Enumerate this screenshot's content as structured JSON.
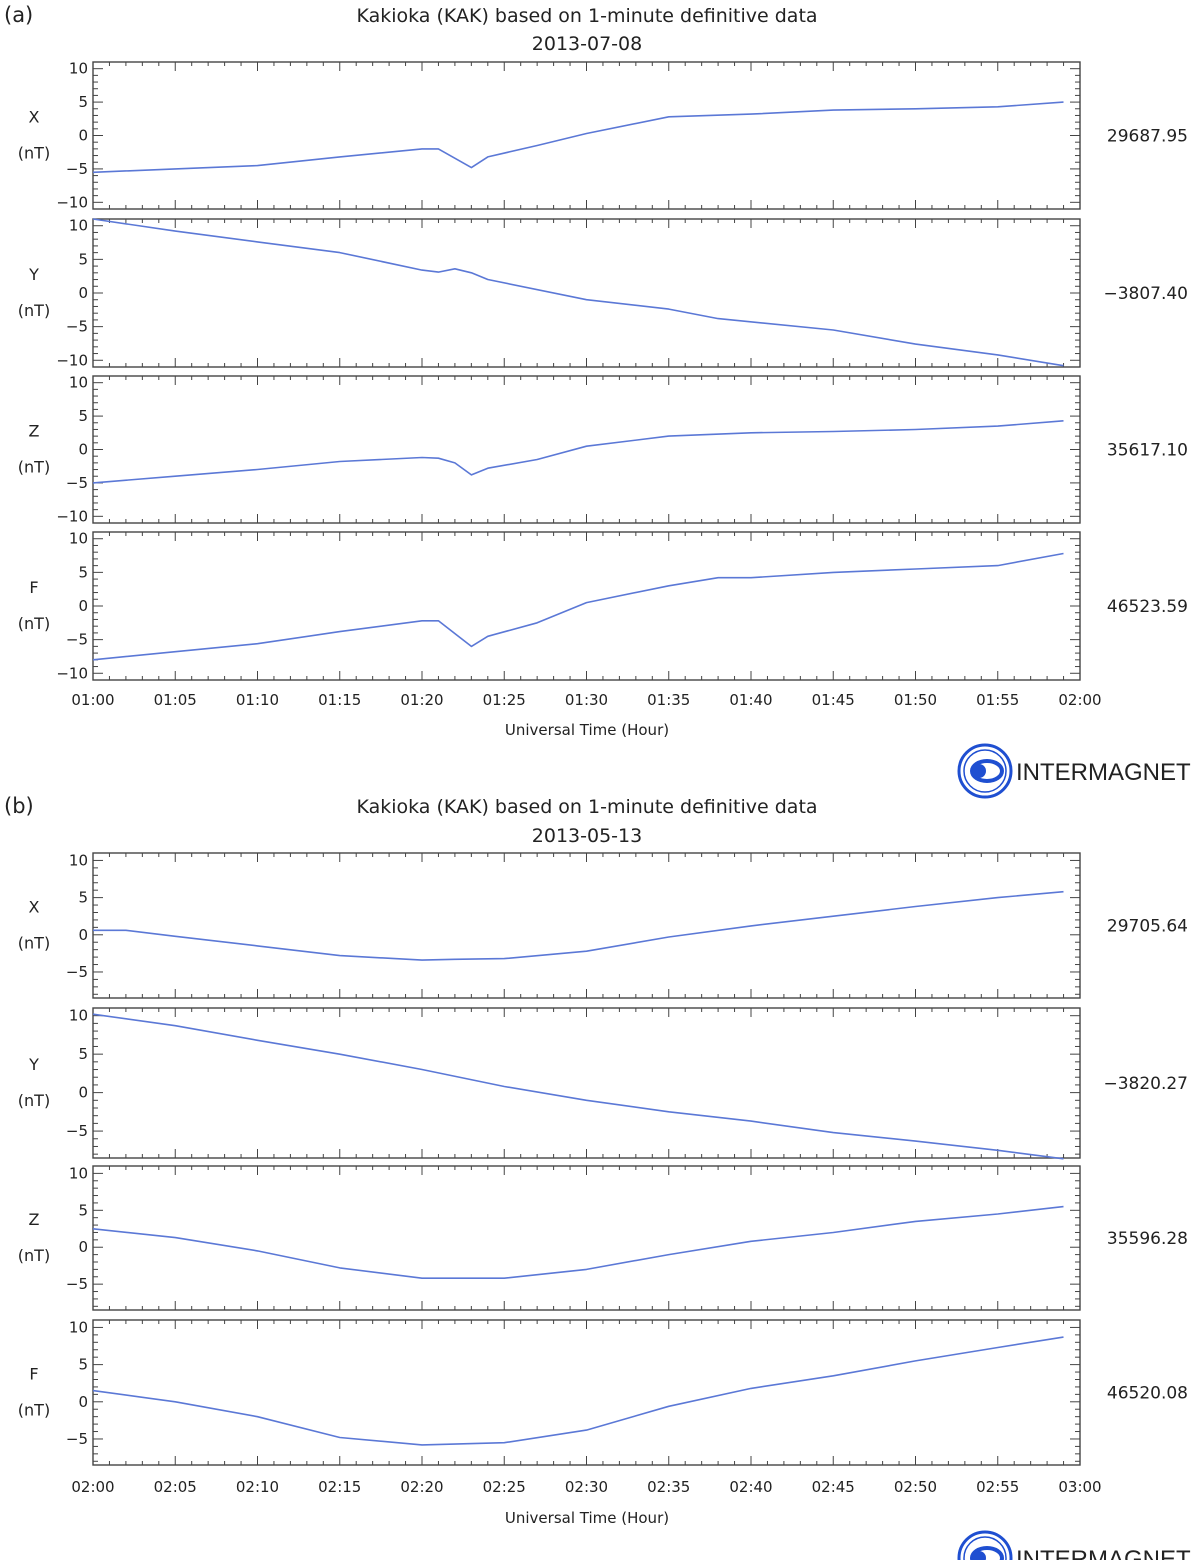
{
  "colors": {
    "series": "#5b78d6",
    "axis": "#444444",
    "logo": "#1f4fd1"
  },
  "logo": {
    "text": "INTERMAGNET",
    "icon": "intermagnet-logo-icon"
  },
  "figures": [
    {
      "panel_label": "(a)",
      "title": "Kakioka (KAK) based on 1-minute definitive data",
      "date": "2013-07-08",
      "xlabel": "Universal Time (Hour)",
      "xticks": [
        "01:00",
        "01:05",
        "01:10",
        "01:15",
        "01:20",
        "01:25",
        "01:30",
        "01:35",
        "01:40",
        "01:45",
        "01:50",
        "01:55",
        "02:00"
      ]
    },
    {
      "panel_label": "(b)",
      "title": "Kakioka (KAK) based on 1-minute definitive data",
      "date": "2013-05-13",
      "xlabel": "Universal Time (Hour)",
      "xticks": [
        "02:00",
        "02:05",
        "02:10",
        "02:15",
        "02:20",
        "02:25",
        "02:30",
        "02:35",
        "02:40",
        "02:45",
        "02:50",
        "02:55",
        "03:00"
      ]
    }
  ],
  "chart_data": [
    {
      "type": "line",
      "figure": "(a)",
      "title": "Kakioka (KAK) based on 1-minute definitive data",
      "subtitle": "2013-07-08",
      "xlabel": "Universal Time (Hour)",
      "x_unit": "minutes after 01:00 UT",
      "xlim": [
        0,
        60
      ],
      "series": [
        {
          "component": "X",
          "unit": "(nT)",
          "baseline": "29687.95",
          "ylim": [
            -11,
            11
          ],
          "yticks": [
            -10,
            -5,
            0,
            5,
            10
          ],
          "points": [
            [
              0,
              -5.5
            ],
            [
              5,
              -5
            ],
            [
              10,
              -4.5
            ],
            [
              15,
              -3.2
            ],
            [
              20,
              -2
            ],
            [
              21,
              -2
            ],
            [
              23,
              -4.8
            ],
            [
              24,
              -3.2
            ],
            [
              27,
              -1.5
            ],
            [
              30,
              0.3
            ],
            [
              35,
              2.8
            ],
            [
              40,
              3.2
            ],
            [
              45,
              3.8
            ],
            [
              50,
              4
            ],
            [
              55,
              4.3
            ],
            [
              59,
              5
            ]
          ]
        },
        {
          "component": "Y",
          "unit": "(nT)",
          "baseline": "−3807.40",
          "ylim": [
            -11,
            11
          ],
          "yticks": [
            -10,
            -5,
            0,
            5,
            10
          ],
          "points": [
            [
              0,
              11
            ],
            [
              5,
              9.2
            ],
            [
              10,
              7.6
            ],
            [
              15,
              6
            ],
            [
              20,
              3.4
            ],
            [
              21,
              3.1
            ],
            [
              22,
              3.6
            ],
            [
              23,
              3
            ],
            [
              24,
              2
            ],
            [
              30,
              -1
            ],
            [
              35,
              -2.4
            ],
            [
              38,
              -3.8
            ],
            [
              45,
              -5.5
            ],
            [
              50,
              -7.6
            ],
            [
              55,
              -9.2
            ],
            [
              59,
              -10.8
            ]
          ]
        },
        {
          "component": "Z",
          "unit": "(nT)",
          "baseline": "35617.10",
          "ylim": [
            -11,
            11
          ],
          "yticks": [
            -10,
            -5,
            0,
            5,
            10
          ],
          "points": [
            [
              0,
              -5
            ],
            [
              5,
              -4
            ],
            [
              10,
              -3
            ],
            [
              15,
              -1.8
            ],
            [
              20,
              -1.2
            ],
            [
              21,
              -1.3
            ],
            [
              22,
              -2
            ],
            [
              23,
              -3.8
            ],
            [
              24,
              -2.8
            ],
            [
              27,
              -1.5
            ],
            [
              30,
              0.5
            ],
            [
              35,
              2
            ],
            [
              40,
              2.5
            ],
            [
              45,
              2.7
            ],
            [
              50,
              3
            ],
            [
              55,
              3.5
            ],
            [
              59,
              4.3
            ]
          ]
        },
        {
          "component": "F",
          "unit": "(nT)",
          "baseline": "46523.59",
          "ylim": [
            -11,
            11
          ],
          "yticks": [
            -10,
            -5,
            0,
            5,
            10
          ],
          "points": [
            [
              0,
              -8
            ],
            [
              5,
              -6.8
            ],
            [
              10,
              -5.6
            ],
            [
              15,
              -3.8
            ],
            [
              20,
              -2.2
            ],
            [
              21,
              -2.2
            ],
            [
              23,
              -6
            ],
            [
              24,
              -4.5
            ],
            [
              27,
              -2.5
            ],
            [
              30,
              0.5
            ],
            [
              35,
              3
            ],
            [
              38,
              4.2
            ],
            [
              40,
              4.2
            ],
            [
              45,
              5
            ],
            [
              50,
              5.5
            ],
            [
              55,
              6
            ],
            [
              59,
              7.8
            ]
          ]
        }
      ]
    },
    {
      "type": "line",
      "figure": "(b)",
      "title": "Kakioka (KAK) based on 1-minute definitive data",
      "subtitle": "2013-05-13",
      "xlabel": "Universal Time (Hour)",
      "x_unit": "minutes after 02:00 UT",
      "xlim": [
        0,
        60
      ],
      "series": [
        {
          "component": "X",
          "unit": "(nT)",
          "baseline": "29705.64",
          "ylim": [
            -8.5,
            11
          ],
          "yticks": [
            -5,
            0,
            5,
            10
          ],
          "points": [
            [
              0,
              0.6
            ],
            [
              2,
              0.6
            ],
            [
              5,
              -0.2
            ],
            [
              10,
              -1.5
            ],
            [
              15,
              -2.8
            ],
            [
              20,
              -3.4
            ],
            [
              22,
              -3.3
            ],
            [
              25,
              -3.2
            ],
            [
              30,
              -2.2
            ],
            [
              35,
              -0.3
            ],
            [
              40,
              1.2
            ],
            [
              45,
              2.5
            ],
            [
              50,
              3.8
            ],
            [
              55,
              5
            ],
            [
              59,
              5.8
            ]
          ]
        },
        {
          "component": "Y",
          "unit": "(nT)",
          "baseline": "−3820.27",
          "ylim": [
            -8.5,
            11
          ],
          "yticks": [
            -5,
            0,
            5,
            10
          ],
          "points": [
            [
              0,
              10.2
            ],
            [
              5,
              8.7
            ],
            [
              10,
              6.8
            ],
            [
              15,
              5
            ],
            [
              20,
              3
            ],
            [
              25,
              0.8
            ],
            [
              30,
              -1
            ],
            [
              35,
              -2.5
            ],
            [
              40,
              -3.7
            ],
            [
              45,
              -5.2
            ],
            [
              50,
              -6.3
            ],
            [
              55,
              -7.5
            ],
            [
              59,
              -8.6
            ]
          ]
        },
        {
          "component": "Z",
          "unit": "(nT)",
          "baseline": "35596.28",
          "ylim": [
            -8.5,
            11
          ],
          "yticks": [
            -5,
            0,
            5,
            10
          ],
          "points": [
            [
              0,
              2.5
            ],
            [
              5,
              1.3
            ],
            [
              10,
              -0.5
            ],
            [
              15,
              -2.8
            ],
            [
              20,
              -4.2
            ],
            [
              25,
              -4.2
            ],
            [
              30,
              -3
            ],
            [
              35,
              -1
            ],
            [
              40,
              0.8
            ],
            [
              45,
              2
            ],
            [
              50,
              3.5
            ],
            [
              55,
              4.5
            ],
            [
              59,
              5.5
            ]
          ]
        },
        {
          "component": "F",
          "unit": "(nT)",
          "baseline": "46520.08",
          "ylim": [
            -8.5,
            11
          ],
          "yticks": [
            -5,
            0,
            5,
            10
          ],
          "points": [
            [
              0,
              1.5
            ],
            [
              5,
              0
            ],
            [
              10,
              -2
            ],
            [
              15,
              -4.8
            ],
            [
              20,
              -5.8
            ],
            [
              25,
              -5.5
            ],
            [
              30,
              -3.8
            ],
            [
              35,
              -0.6
            ],
            [
              40,
              1.8
            ],
            [
              45,
              3.5
            ],
            [
              50,
              5.5
            ],
            [
              55,
              7.3
            ],
            [
              59,
              8.7
            ]
          ]
        }
      ]
    }
  ]
}
